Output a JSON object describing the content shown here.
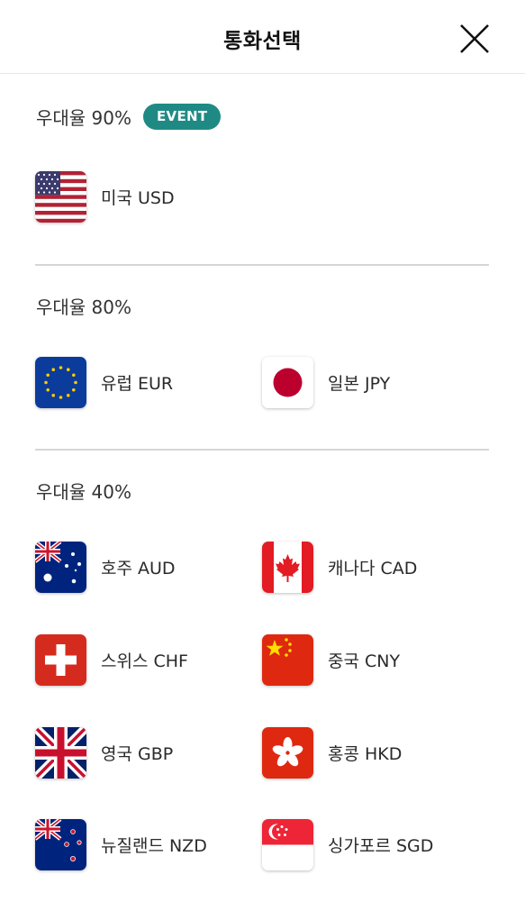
{
  "header": {
    "title": "통화선택"
  },
  "sections": [
    {
      "title": "우대율 90%",
      "badge": "EVENT",
      "items": [
        {
          "label": "미국 USD",
          "flag": "us-flag-icon"
        }
      ]
    },
    {
      "title": "우대율 80%",
      "items": [
        {
          "label": "유럽 EUR",
          "flag": "eu-flag-icon"
        },
        {
          "label": "일본 JPY",
          "flag": "japan-flag-icon"
        }
      ]
    },
    {
      "title": "우대율 40%",
      "items": [
        {
          "label": "호주 AUD",
          "flag": "australia-flag-icon"
        },
        {
          "label": "캐나다 CAD",
          "flag": "canada-flag-icon"
        },
        {
          "label": "스위스 CHF",
          "flag": "switzerland-flag-icon"
        },
        {
          "label": "중국 CNY",
          "flag": "china-flag-icon"
        },
        {
          "label": "영국 GBP",
          "flag": "uk-flag-icon"
        },
        {
          "label": "홍콩 HKD",
          "flag": "hongkong-flag-icon"
        },
        {
          "label": "뉴질랜드 NZD",
          "flag": "newzealand-flag-icon"
        },
        {
          "label": "싱가포르 SGD",
          "flag": "singapore-flag-icon"
        }
      ]
    }
  ],
  "colors": {
    "badge": "#1f8a84",
    "divider": "#d6d6d6"
  }
}
